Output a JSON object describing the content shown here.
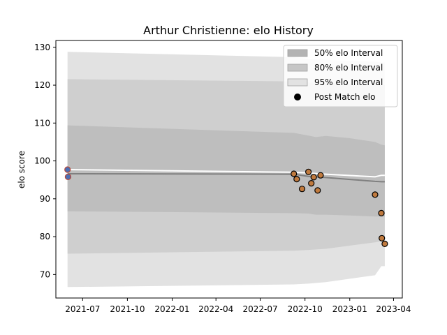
{
  "chart_data": {
    "type": "line",
    "title": "Arthur Christienne: elo History",
    "xlabel": "",
    "ylabel": "elo score",
    "xlim": [
      "2021-05-07",
      "2023-04-19"
    ],
    "ylim": [
      63.8,
      131.8
    ],
    "x_ticks": [
      "2021-07",
      "2021-10",
      "2022-01",
      "2022-04",
      "2022-07",
      "2022-10",
      "2023-01",
      "2023-04"
    ],
    "y_ticks": [
      70,
      80,
      90,
      100,
      110,
      120,
      130
    ],
    "grid": false,
    "legend_position": "top-right",
    "legend": [
      {
        "label": "50% elo Interval",
        "kind": "patch",
        "color": "#b3b3b3"
      },
      {
        "label": "80% elo Interval",
        "kind": "patch",
        "color": "#c6c6c6"
      },
      {
        "label": "95% elo Interval",
        "kind": "patch",
        "color": "#e2e2e2"
      },
      {
        "label": "Post Match elo",
        "kind": "marker",
        "color": "#000000"
      }
    ],
    "bands": [
      {
        "name": "95% elo Interval",
        "color": "#e2e2e2",
        "x": [
          "2021-05-31",
          "2022-09-08",
          "2022-10-08",
          "2022-11-13",
          "2023-02-22",
          "2023-03-07",
          "2023-03-14"
        ],
        "upper": [
          128.8,
          127.4,
          126.9,
          126.7,
          126.2,
          126.0,
          126.0
        ],
        "lower": [
          66.7,
          67.4,
          67.6,
          68.0,
          69.8,
          72.2,
          72.2
        ]
      },
      {
        "name": "80% elo Interval",
        "color": "#cfcfcf",
        "x": [
          "2021-05-31",
          "2022-09-08",
          "2022-10-08",
          "2022-11-13",
          "2023-02-22",
          "2023-03-07",
          "2023-03-14"
        ],
        "upper": [
          121.6,
          121.0,
          120.7,
          120.6,
          120.1,
          120.0,
          120.0
        ],
        "lower": [
          75.5,
          76.3,
          76.5,
          76.8,
          78.5,
          78.8,
          78.8
        ]
      },
      {
        "name": "50% elo Interval",
        "color": "#bebebe",
        "x": [
          "2021-05-31",
          "2022-09-08",
          "2022-10-08",
          "2022-10-23",
          "2022-11-13",
          "2023-01-01",
          "2023-02-22",
          "2023-03-07",
          "2023-03-14"
        ],
        "upper": [
          109.4,
          107.4,
          106.7,
          106.3,
          106.6,
          106.0,
          105.0,
          104.3,
          104.1
        ],
        "lower": [
          86.7,
          86.2,
          86.1,
          85.8,
          85.8,
          85.6,
          85.3,
          85.3,
          85.3
        ]
      }
    ],
    "median_line": {
      "color": "#808080",
      "x": [
        "2021-05-31",
        "2022-09-08",
        "2022-10-08",
        "2022-11-13",
        "2023-02-22",
        "2023-03-07",
        "2023-03-14"
      ],
      "y": [
        96.6,
        96.5,
        95.9,
        95.6,
        94.6,
        94.5,
        94.5
      ]
    },
    "mean_line": {
      "color": "#ffffff",
      "x": [
        "2021-05-31",
        "2022-09-08",
        "2022-10-08",
        "2022-11-13",
        "2023-02-22",
        "2023-03-07",
        "2023-03-14"
      ],
      "y": [
        97.7,
        97.0,
        96.8,
        96.5,
        95.8,
        96.2,
        96.2
      ]
    },
    "series": [
      {
        "name": "Post Match elo",
        "kind": "scatter",
        "points": [
          {
            "x": "2021-05-31",
            "y": 97.7,
            "color": "#4a6fb5",
            "edge": "#b5473a"
          },
          {
            "x": "2021-06-01",
            "y": 95.8,
            "color": "#4a6fb5",
            "edge": "#b5473a"
          },
          {
            "x": "2022-09-08",
            "y": 96.6,
            "color": "#c07a3e",
            "edge": "#000000"
          },
          {
            "x": "2022-09-14",
            "y": 95.2,
            "color": "#c07a3e",
            "edge": "#000000"
          },
          {
            "x": "2022-09-25",
            "y": 92.6,
            "color": "#c07a3e",
            "edge": "#000000"
          },
          {
            "x": "2022-10-08",
            "y": 97.1,
            "color": "#c07a3e",
            "edge": "#000000"
          },
          {
            "x": "2022-10-14",
            "y": 94.1,
            "color": "#c07a3e",
            "edge": "#000000"
          },
          {
            "x": "2022-10-19",
            "y": 95.7,
            "color": "#c07a3e",
            "edge": "#000000"
          },
          {
            "x": "2022-10-27",
            "y": 92.2,
            "color": "#c07a3e",
            "edge": "#000000"
          },
          {
            "x": "2022-11-02",
            "y": 96.2,
            "color": "#c07a3e",
            "edge": "#000000"
          },
          {
            "x": "2023-02-22",
            "y": 91.1,
            "color": "#c07a3e",
            "edge": "#000000"
          },
          {
            "x": "2023-03-07",
            "y": 86.2,
            "color": "#c07a3e",
            "edge": "#000000"
          },
          {
            "x": "2023-03-08",
            "y": 79.6,
            "color": "#c07a3e",
            "edge": "#000000"
          },
          {
            "x": "2023-03-14",
            "y": 78.1,
            "color": "#c07a3e",
            "edge": "#000000"
          }
        ]
      }
    ]
  }
}
